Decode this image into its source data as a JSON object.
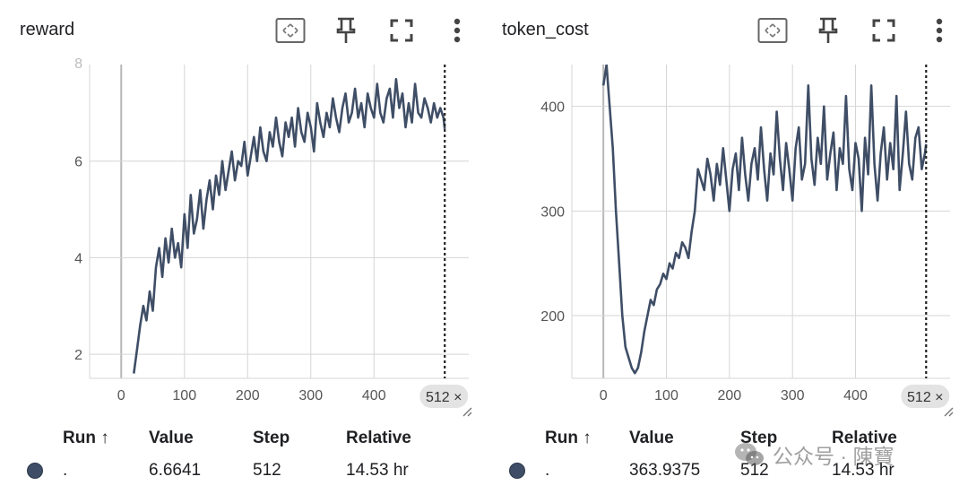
{
  "panels": [
    {
      "title": "reward",
      "table": {
        "headers": {
          "run": "Run ↑",
          "value": "Value",
          "step": "Step",
          "relative": "Relative"
        },
        "row": {
          "run": ".",
          "value": "6.6641",
          "step": "512",
          "relative": "14.53 hr"
        }
      }
    },
    {
      "title": "token_cost",
      "table": {
        "headers": {
          "run": "Run ↑",
          "value": "Value",
          "step": "Step",
          "relative": "Relative"
        },
        "row": {
          "run": ".",
          "value": "363.9375",
          "step": "512",
          "relative": "14.53 hr"
        }
      }
    }
  ],
  "tools": [
    "fit-domain-icon",
    "pin-icon",
    "fullscreen-icon",
    "more-vert-icon"
  ],
  "colors": {
    "series": "#3f4e66",
    "grid": "#d5d5d5",
    "axis": "#b8b8b8",
    "badge": "#e3e3e3"
  },
  "watermark": {
    "text": "公众号 · 陳寶"
  },
  "chart_data": [
    {
      "type": "line",
      "title": "reward",
      "xlabel": "",
      "ylabel": "",
      "xlim": [
        -50,
        550
      ],
      "ylim": [
        1.5,
        8.0
      ],
      "xticks": [
        "0",
        "100",
        "200",
        "300",
        "400"
      ],
      "yticks": [
        "2",
        "4",
        "6"
      ],
      "y_top_partial_label": "8",
      "cursor": {
        "x": 512,
        "label": "512 ×"
      },
      "grid": true,
      "series": [
        {
          "name": "",
          "x": [
            20,
            25,
            30,
            35,
            40,
            45,
            50,
            55,
            60,
            65,
            70,
            75,
            80,
            85,
            90,
            95,
            100,
            105,
            110,
            115,
            120,
            125,
            130,
            135,
            140,
            145,
            150,
            155,
            160,
            165,
            170,
            175,
            180,
            185,
            190,
            195,
            200,
            205,
            210,
            215,
            220,
            225,
            230,
            235,
            240,
            245,
            250,
            255,
            260,
            265,
            270,
            275,
            280,
            285,
            290,
            295,
            300,
            305,
            310,
            315,
            320,
            325,
            330,
            335,
            340,
            345,
            350,
            355,
            360,
            365,
            370,
            375,
            380,
            385,
            390,
            395,
            400,
            405,
            410,
            415,
            420,
            425,
            430,
            435,
            440,
            445,
            450,
            455,
            460,
            465,
            470,
            475,
            480,
            485,
            490,
            495,
            500,
            505,
            510,
            512
          ],
          "y": [
            1.6,
            2.1,
            2.6,
            3.0,
            2.7,
            3.3,
            2.9,
            3.8,
            4.2,
            3.6,
            4.4,
            3.9,
            4.6,
            4.0,
            4.3,
            3.8,
            4.9,
            4.2,
            5.3,
            4.5,
            4.8,
            5.4,
            4.6,
            5.2,
            5.6,
            5.0,
            5.7,
            5.3,
            6.0,
            5.4,
            5.8,
            6.2,
            5.6,
            6.0,
            5.9,
            6.4,
            5.7,
            6.1,
            6.5,
            6.0,
            6.7,
            6.2,
            6.0,
            6.6,
            6.3,
            6.9,
            6.4,
            6.1,
            6.8,
            6.5,
            6.9,
            6.3,
            7.1,
            6.6,
            6.4,
            7.0,
            6.7,
            6.2,
            7.2,
            6.8,
            6.5,
            7.0,
            6.7,
            7.3,
            6.9,
            6.6,
            7.1,
            7.4,
            6.8,
            7.0,
            7.5,
            6.9,
            7.2,
            6.7,
            7.4,
            7.1,
            6.9,
            7.6,
            7.0,
            6.8,
            7.3,
            7.5,
            6.9,
            7.7,
            7.1,
            7.4,
            6.7,
            7.2,
            6.8,
            7.6,
            7.0,
            6.9,
            7.3,
            7.1,
            6.8,
            7.2,
            6.9,
            7.1,
            6.9,
            6.6641
          ]
        }
      ]
    },
    {
      "type": "line",
      "title": "token_cost",
      "xlabel": "",
      "ylabel": "",
      "xlim": [
        -50,
        550
      ],
      "ylim": [
        140,
        440
      ],
      "xticks": [
        "0",
        "100",
        "200",
        "300",
        "400"
      ],
      "yticks": [
        "200",
        "300",
        "400"
      ],
      "cursor": {
        "x": 512,
        "label": "512 ×"
      },
      "grid": true,
      "series": [
        {
          "name": "",
          "x": [
            0,
            5,
            10,
            15,
            20,
            25,
            30,
            35,
            40,
            45,
            50,
            55,
            60,
            65,
            70,
            75,
            80,
            85,
            90,
            95,
            100,
            105,
            110,
            115,
            120,
            125,
            130,
            135,
            140,
            145,
            150,
            155,
            160,
            165,
            170,
            175,
            180,
            185,
            190,
            195,
            200,
            205,
            210,
            215,
            220,
            225,
            230,
            235,
            240,
            245,
            250,
            255,
            260,
            265,
            270,
            275,
            280,
            285,
            290,
            295,
            300,
            305,
            310,
            315,
            320,
            325,
            330,
            335,
            340,
            345,
            350,
            355,
            360,
            365,
            370,
            375,
            380,
            385,
            390,
            395,
            400,
            405,
            410,
            415,
            420,
            425,
            430,
            435,
            440,
            445,
            450,
            455,
            460,
            465,
            470,
            475,
            480,
            485,
            490,
            495,
            500,
            505,
            510,
            512
          ],
          "y": [
            420,
            440,
            400,
            360,
            300,
            250,
            200,
            170,
            160,
            150,
            145,
            150,
            165,
            185,
            200,
            215,
            210,
            225,
            230,
            240,
            235,
            250,
            245,
            260,
            255,
            270,
            265,
            255,
            280,
            300,
            340,
            330,
            320,
            350,
            335,
            310,
            345,
            325,
            360,
            330,
            300,
            340,
            355,
            320,
            370,
            335,
            310,
            345,
            360,
            330,
            380,
            340,
            310,
            355,
            335,
            395,
            350,
            320,
            365,
            340,
            310,
            360,
            380,
            330,
            345,
            420,
            350,
            325,
            370,
            345,
            400,
            330,
            355,
            375,
            320,
            360,
            345,
            410,
            340,
            320,
            365,
            350,
            300,
            370,
            335,
            420,
            345,
            310,
            355,
            380,
            330,
            365,
            340,
            410,
            320,
            355,
            395,
            345,
            330,
            370,
            380,
            340,
            355,
            363.9375
          ]
        }
      ]
    }
  ]
}
